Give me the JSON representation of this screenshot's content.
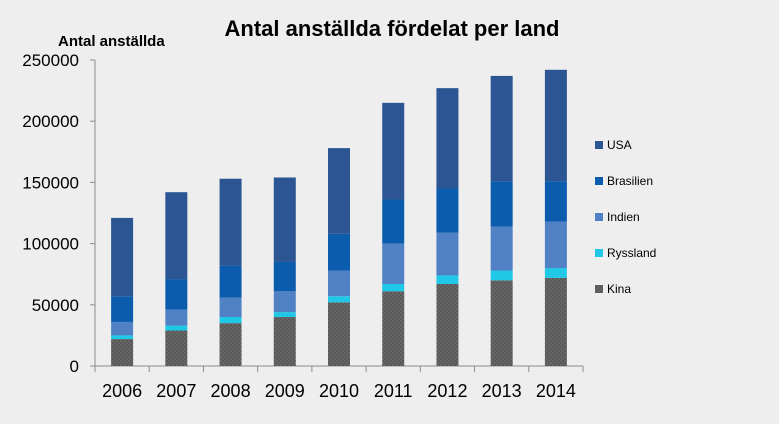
{
  "chart_data": {
    "type": "bar",
    "stacked": true,
    "title": "Antal anställda fördelat per land",
    "ylabel": "Antal anställda",
    "xlabel": "",
    "categories": [
      "2006",
      "2007",
      "2008",
      "2009",
      "2010",
      "2011",
      "2012",
      "2013",
      "2014"
    ],
    "ylim": [
      0,
      250000
    ],
    "yticks": [
      0,
      50000,
      100000,
      150000,
      200000,
      250000
    ],
    "ytick_labels": [
      "0",
      "50000",
      "100000",
      "150000",
      "200000",
      "250000"
    ],
    "grid": false,
    "legend_position": "right",
    "series": [
      {
        "name": "Kina",
        "color": "#595959",
        "pattern": "dotted",
        "values": [
          22000,
          29000,
          35000,
          40000,
          52000,
          61000,
          67000,
          70000,
          72000
        ]
      },
      {
        "name": "Ryssland",
        "color": "#1ec8e6",
        "values": [
          3000,
          4000,
          5000,
          4000,
          5000,
          6000,
          7000,
          8000,
          8000
        ]
      },
      {
        "name": "Indien",
        "color": "#4f81c4",
        "values": [
          11000,
          13000,
          16000,
          17000,
          21000,
          33000,
          35000,
          36000,
          38000
        ]
      },
      {
        "name": "Brasilien",
        "color": "#0b5cad",
        "values": [
          21000,
          25000,
          26000,
          24000,
          30000,
          36000,
          36000,
          37000,
          33000
        ]
      },
      {
        "name": "USA",
        "color": "#2c5593",
        "values": [
          64000,
          71000,
          71000,
          69000,
          70000,
          79000,
          82000,
          86000,
          91000
        ]
      }
    ],
    "legend_order": [
      "USA",
      "Brasilien",
      "Indien",
      "Ryssland",
      "Kina"
    ]
  }
}
